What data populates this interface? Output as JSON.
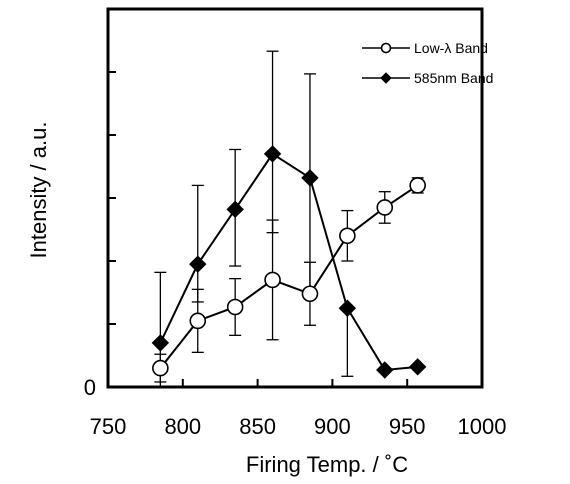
{
  "chart_data": {
    "type": "line",
    "title": "",
    "xlabel": "Firing Temp. /  ˚C",
    "ylabel": "Intensity / a.u.",
    "xlim": [
      750,
      1000
    ],
    "ylim": [
      0,
      6
    ],
    "x_ticks": [
      750,
      800,
      850,
      900,
      950,
      1000
    ],
    "x_tick_labels": [
      "750",
      "800",
      "850",
      "900",
      "950",
      "1000"
    ],
    "y_ticks": [
      0,
      1,
      2,
      3,
      4,
      5,
      6
    ],
    "y_tick_labels": [
      "0",
      "",
      "",
      "",
      "",
      "",
      ""
    ],
    "grid": false,
    "legend_position": "top-right",
    "series": [
      {
        "name": "Low-λ Band",
        "marker": "open-circle",
        "color": "#000000",
        "x": [
          785,
          810,
          835,
          860,
          885,
          910,
          935,
          957
        ],
        "y": [
          0.3,
          1.05,
          1.27,
          1.7,
          1.48,
          2.4,
          2.85,
          3.2
        ],
        "err_low": [
          0.22,
          0.5,
          0.45,
          0.95,
          0.5,
          0.4,
          0.25,
          0.12
        ],
        "err_high": [
          0.22,
          0.5,
          0.45,
          0.95,
          0.5,
          0.4,
          0.25,
          0.12
        ]
      },
      {
        "name": "585nm Band",
        "marker": "filled-diamond",
        "color": "#000000",
        "x": [
          785,
          810,
          835,
          860,
          885,
          910,
          935,
          957
        ],
        "y": [
          0.7,
          1.95,
          2.82,
          3.7,
          3.32,
          1.25,
          0.27,
          0.32
        ],
        "err_low": [
          0.7,
          0.6,
          0.9,
          1.25,
          1.87,
          1.08,
          0,
          0
        ],
        "err_high": [
          1.12,
          1.25,
          0.95,
          1.63,
          1.65,
          0,
          0,
          0
        ]
      }
    ]
  }
}
